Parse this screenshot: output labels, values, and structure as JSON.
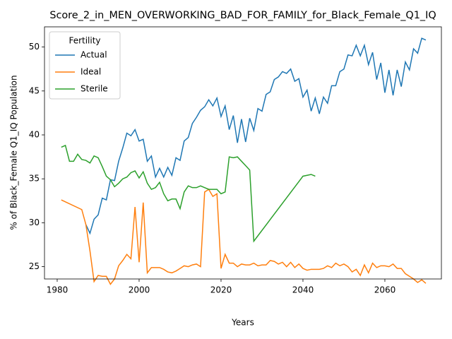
{
  "chart_data": {
    "type": "line",
    "title": "Score_2_in_MEN_OVERWORKING_BAD_FOR_FAMILY_for_Black_Female_Q1_IQ",
    "x_label": "Years",
    "y_label": "% of Black_Female Q1_IQ Population",
    "legend_title": "Fertility",
    "legend": "upper left",
    "xlim": [
      1976.9,
      2073.8
    ],
    "ylim": [
      23.6,
      52.3
    ],
    "xticks": [
      1980,
      2000,
      2020,
      2040,
      2060
    ],
    "yticks": [
      25,
      30,
      35,
      40,
      45,
      50
    ],
    "series": [
      {
        "name": "Actual",
        "color": "#1f77b4",
        "x": [
          1987,
          1988,
          1989,
          1990,
          1991,
          1992,
          1993,
          1994,
          1995,
          1996,
          1997,
          1998,
          1999,
          2000,
          2001,
          2002,
          2003,
          2004,
          2005,
          2006,
          2007,
          2008,
          2009,
          2010,
          2011,
          2012,
          2013,
          2014,
          2015,
          2016,
          2017,
          2018,
          2019,
          2020,
          2021,
          2022,
          2023,
          2024,
          2025,
          2026,
          2027,
          2028,
          2029,
          2030,
          2031,
          2032,
          2033,
          2034,
          2035,
          2036,
          2037,
          2038,
          2039,
          2040,
          2041,
          2042,
          2043,
          2044,
          2045,
          2046,
          2047,
          2048,
          2049,
          2050,
          2051,
          2052,
          2053,
          2054,
          2055,
          2056,
          2057,
          2058,
          2059,
          2060,
          2061,
          2062,
          2063,
          2064,
          2065,
          2066,
          2067,
          2068,
          2069,
          2070
        ],
        "values": [
          29.8,
          28.8,
          30.4,
          30.9,
          32.8,
          32.6,
          34.9,
          34.8,
          37.0,
          38.5,
          40.2,
          39.9,
          40.6,
          39.3,
          39.5,
          37.0,
          37.6,
          35.2,
          36.2,
          35.2,
          36.3,
          35.4,
          37.4,
          37.1,
          39.3,
          39.7,
          41.3,
          42.0,
          42.8,
          43.2,
          44.0,
          43.3,
          44.2,
          42.1,
          43.3,
          40.6,
          42.2,
          39.1,
          41.8,
          39.2,
          41.9,
          40.5,
          43.0,
          42.7,
          44.6,
          44.9,
          46.3,
          46.6,
          47.2,
          47.0,
          47.5,
          46.1,
          46.4,
          44.3,
          45.1,
          42.7,
          44.2,
          42.4,
          44.3,
          43.6,
          45.6,
          45.6,
          47.2,
          47.5,
          49.1,
          49.0,
          50.2,
          49.0,
          50.2,
          48.0,
          49.4,
          46.3,
          48.2,
          44.8,
          47.4,
          44.5,
          47.4,
          45.5,
          48.3,
          47.4,
          49.8,
          49.3,
          51.0,
          50.8
        ]
      },
      {
        "name": "Ideal",
        "color": "#ff7f0e",
        "x": [
          1981,
          1986,
          1987,
          1988,
          1989,
          1990,
          1991,
          1992,
          1993,
          1994,
          1995,
          1996,
          1997,
          1998,
          1999,
          2000,
          2001,
          2002,
          2003,
          2004,
          2005,
          2006,
          2007,
          2008,
          2009,
          2010,
          2011,
          2012,
          2013,
          2014,
          2015,
          2016,
          2017,
          2018,
          2019,
          2020,
          2021,
          2022,
          2023,
          2024,
          2025,
          2026,
          2027,
          2028,
          2029,
          2030,
          2031,
          2032,
          2033,
          2034,
          2035,
          2036,
          2037,
          2038,
          2039,
          2040,
          2041,
          2042,
          2043,
          2044,
          2045,
          2046,
          2047,
          2048,
          2049,
          2050,
          2051,
          2052,
          2053,
          2054,
          2055,
          2056,
          2057,
          2058,
          2059,
          2060,
          2061,
          2062,
          2063,
          2064,
          2065,
          2066,
          2067,
          2068,
          2069,
          2070
        ],
        "values": [
          32.6,
          31.5,
          29.8,
          26.8,
          23.3,
          24.0,
          23.9,
          23.9,
          23.0,
          23.6,
          25.1,
          25.7,
          26.4,
          25.9,
          31.8,
          25.5,
          32.3,
          24.3,
          24.9,
          24.9,
          24.9,
          24.7,
          24.4,
          24.3,
          24.5,
          24.8,
          25.1,
          25.0,
          25.2,
          25.3,
          25.0,
          33.5,
          33.8,
          33.0,
          33.3,
          24.8,
          26.4,
          25.4,
          25.4,
          25.0,
          25.3,
          25.2,
          25.2,
          25.4,
          25.1,
          25.2,
          25.2,
          25.7,
          25.6,
          25.3,
          25.5,
          25.0,
          25.5,
          24.9,
          25.3,
          24.8,
          24.6,
          24.7,
          24.7,
          24.7,
          24.8,
          25.1,
          24.9,
          25.4,
          25.1,
          25.3,
          25.0,
          24.4,
          24.7,
          24.0,
          25.2,
          24.3,
          25.4,
          24.9,
          25.1,
          25.1,
          25.0,
          25.3,
          24.8,
          24.8,
          24.2,
          23.9,
          23.6,
          23.2,
          23.5,
          23.1
        ]
      },
      {
        "name": "Sterile",
        "color": "#2ca02c",
        "x": [
          1981,
          1982,
          1983,
          1984,
          1985,
          1986,
          1987,
          1988,
          1989,
          1990,
          1991,
          1992,
          1993,
          1994,
          1995,
          1996,
          1997,
          1998,
          1999,
          2000,
          2001,
          2002,
          2003,
          2004,
          2005,
          2006,
          2007,
          2008,
          2009,
          2010,
          2011,
          2012,
          2013,
          2014,
          2015,
          2016,
          2017,
          2018,
          2019,
          2020,
          2021,
          2022,
          2023,
          2024,
          2025,
          2026,
          2027,
          2028,
          2040,
          2041,
          2042,
          2043
        ],
        "values": [
          38.6,
          38.8,
          37.0,
          37.0,
          37.8,
          37.2,
          37.1,
          36.8,
          37.6,
          37.4,
          36.4,
          35.3,
          34.9,
          34.1,
          34.5,
          35.0,
          35.2,
          35.7,
          35.9,
          35.1,
          35.8,
          34.5,
          33.8,
          34.0,
          34.6,
          33.3,
          32.5,
          32.7,
          32.7,
          31.6,
          33.5,
          34.2,
          34.0,
          34.0,
          34.2,
          34.0,
          33.8,
          33.8,
          33.8,
          33.3,
          33.5,
          37.5,
          37.4,
          37.5,
          37.0,
          36.5,
          36.0,
          27.9,
          35.3,
          35.4,
          35.5,
          35.3
        ]
      }
    ]
  }
}
